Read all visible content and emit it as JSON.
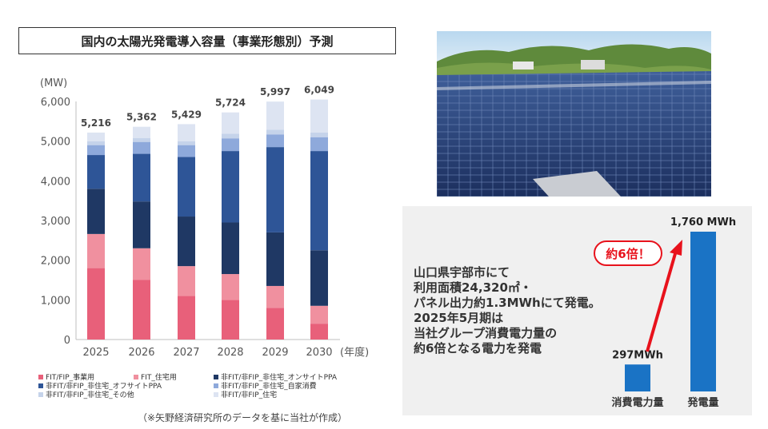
{
  "title": "国内の太陽光発電導入容量（事業形態別）予測",
  "source_note": "（※矢野経済研究所のデータを基に当社が作成）",
  "chart_data": {
    "type": "bar",
    "stacked": true,
    "title": "国内の太陽光発電導入容量（事業形態別）予測",
    "yunit": "(MW)",
    "xunit": "(年度)",
    "ylim": [
      0,
      6000
    ],
    "yticks": [
      "0",
      "1,000",
      "2,000",
      "3,000",
      "4,000",
      "5,000",
      "6,000"
    ],
    "ytick_values": [
      0,
      1000,
      2000,
      3000,
      4000,
      5000,
      6000
    ],
    "categories": [
      "2025",
      "2026",
      "2027",
      "2028",
      "2029",
      "2030"
    ],
    "totals": [
      5216,
      5362,
      5429,
      5724,
      5997,
      6049
    ],
    "total_labels": [
      "5,216",
      "5,362",
      "5,429",
      "5,724",
      "5,997",
      "6,049"
    ],
    "grid": false,
    "legend_position": "bottom",
    "series": [
      {
        "name": "FIT/FIP_事業用",
        "color": "#e8607a",
        "values": [
          1800,
          1500,
          1100,
          1000,
          800,
          400
        ]
      },
      {
        "name": "FIT_住宅用",
        "color": "#f0909f",
        "values": [
          860,
          800,
          750,
          650,
          550,
          450
        ]
      },
      {
        "name": "非FIT/非FIP_非住宅_オンサイトPPA",
        "color": "#1f3864",
        "values": [
          1140,
          1180,
          1250,
          1300,
          1350,
          1400
        ]
      },
      {
        "name": "非FIT/非FIP_非住宅_オフサイトPPA",
        "color": "#2e5597",
        "values": [
          850,
          1200,
          1500,
          1800,
          2150,
          2500
        ]
      },
      {
        "name": "非FIT/非FIP_非住宅_自家消費",
        "color": "#8ea9db",
        "values": [
          250,
          300,
          300,
          320,
          320,
          350
        ]
      },
      {
        "name": "非FIT/非FIP_非住宅_その他",
        "color": "#c5d3ea",
        "values": [
          100,
          100,
          100,
          120,
          120,
          120
        ]
      },
      {
        "name": "非FIT/非FIP_住宅",
        "color": "#dde4f2",
        "values": [
          216,
          282,
          429,
          534,
          707,
          829
        ]
      }
    ]
  },
  "info": {
    "lines": [
      "山口県宇部市にて",
      "利用面積24,320㎡・",
      "パネル出力約1.3MWhにて発電。",
      "2025年5月期は",
      "当社グループ消費電力量の",
      "約6倍となる電力を発電"
    ],
    "comparison": {
      "callout": "約6倍！",
      "bars": [
        {
          "label": "消費電力量",
          "value": 297,
          "value_label": "297MWh",
          "color": "#1a73c5"
        },
        {
          "label": "発電量",
          "value": 1760,
          "value_label": "1,760 MWh",
          "color": "#1a73c5"
        }
      ]
    }
  },
  "colors": {
    "accent_red": "#e8121c",
    "bar_blue": "#1a73c5",
    "panel_bg": "#f0f0f0"
  }
}
